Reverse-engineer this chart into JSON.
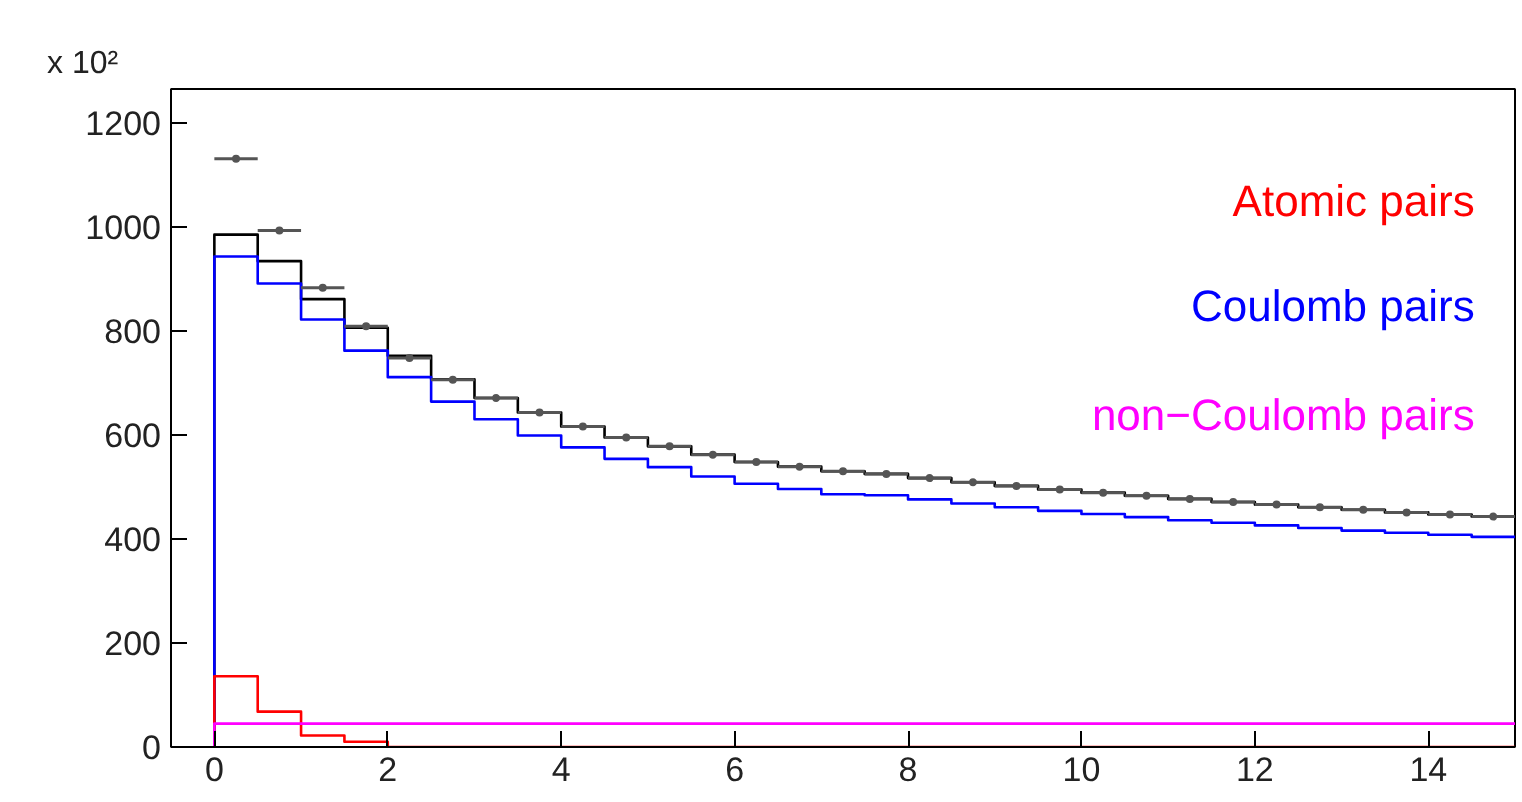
{
  "chart_data": {
    "type": "histogram",
    "ylabel": "x 10²",
    "bins": [
      0,
      0.5,
      1,
      1.5,
      2,
      2.5,
      3,
      3.5,
      4,
      4.5,
      5,
      5.5,
      6,
      6.5,
      7,
      7.5,
      8,
      8.5,
      9,
      9.5,
      10,
      10.5,
      11,
      11.5,
      12,
      12.5,
      13,
      13.5,
      14,
      14.5,
      15
    ],
    "series": [
      {
        "color": "#000000",
        "values": [
          985,
          934,
          861,
          806,
          752,
          707,
          671,
          643,
          616,
          595,
          578,
          562,
          548,
          539,
          530,
          525,
          517,
          509,
          502,
          495,
          489,
          483,
          477,
          471,
          466,
          461,
          456,
          451,
          447,
          443
        ]
      },
      {
        "name": "Coulomb pairs",
        "color": "#0000ff",
        "values": [
          943,
          891,
          822,
          762,
          711,
          664,
          630,
          599,
          576,
          554,
          538,
          520,
          506,
          496,
          486,
          484,
          476,
          468,
          461,
          454,
          448,
          442,
          436,
          431,
          426,
          421,
          416,
          412,
          408,
          404
        ]
      },
      {
        "name": "Atomic pairs",
        "color": "#ff0000",
        "values": [
          136,
          68,
          22,
          10,
          0,
          0,
          0,
          0,
          0,
          0,
          0,
          0,
          0,
          0,
          0,
          0,
          0,
          0,
          0,
          0,
          0,
          0,
          0,
          0,
          0,
          0,
          0,
          0,
          0,
          0
        ]
      },
      {
        "name": "non−Coulomb pairs",
        "color": "#ff00ff",
        "values": [
          45,
          45,
          45,
          45,
          45,
          45,
          45,
          45,
          45,
          45,
          45,
          45,
          45,
          45,
          45,
          45,
          45,
          45,
          45,
          45,
          45,
          45,
          45,
          45,
          45,
          45,
          45,
          45,
          45,
          45
        ]
      },
      {
        "type": "scatter",
        "color": "#555555",
        "x": [
          0.25,
          0.75,
          1.25,
          1.75,
          2.25,
          2.75,
          3.25,
          3.75,
          4.25,
          4.75,
          5.25,
          5.75,
          6.25,
          6.75,
          7.25,
          7.75,
          8.25,
          8.75,
          9.25,
          9.75,
          10.25,
          10.75,
          11.25,
          11.75,
          12.25,
          12.75,
          13.25,
          13.75,
          14.25,
          14.75
        ],
        "values": [
          1131,
          993,
          883,
          809,
          748,
          706,
          671,
          643,
          616,
          595,
          578,
          562,
          548,
          539,
          530,
          525,
          517,
          509,
          502,
          495,
          489,
          483,
          477,
          471,
          466,
          461,
          456,
          451,
          447,
          443
        ],
        "xerrors": [
          0.25,
          0.25,
          0.25,
          0.25,
          0.25,
          0.25,
          0.25,
          0.25,
          0.25,
          0.25,
          0.25,
          0.25,
          0.25,
          0.25,
          0.25,
          0.25,
          0.25,
          0.25,
          0.25,
          0.25,
          0.25,
          0.25,
          0.25,
          0.25,
          0.25,
          0.25,
          0.25,
          0.25,
          0.25,
          0.25
        ],
        "marker": "circle"
      }
    ],
    "xlim": [
      -0.5,
      15
    ],
    "ylim": [
      0,
      1265
    ],
    "xticks": [
      0,
      2,
      4,
      6,
      8,
      10,
      12,
      14
    ],
    "yticks": [
      0,
      200,
      400,
      600,
      800,
      1000,
      1200
    ],
    "grid": false,
    "legend": "top right"
  }
}
